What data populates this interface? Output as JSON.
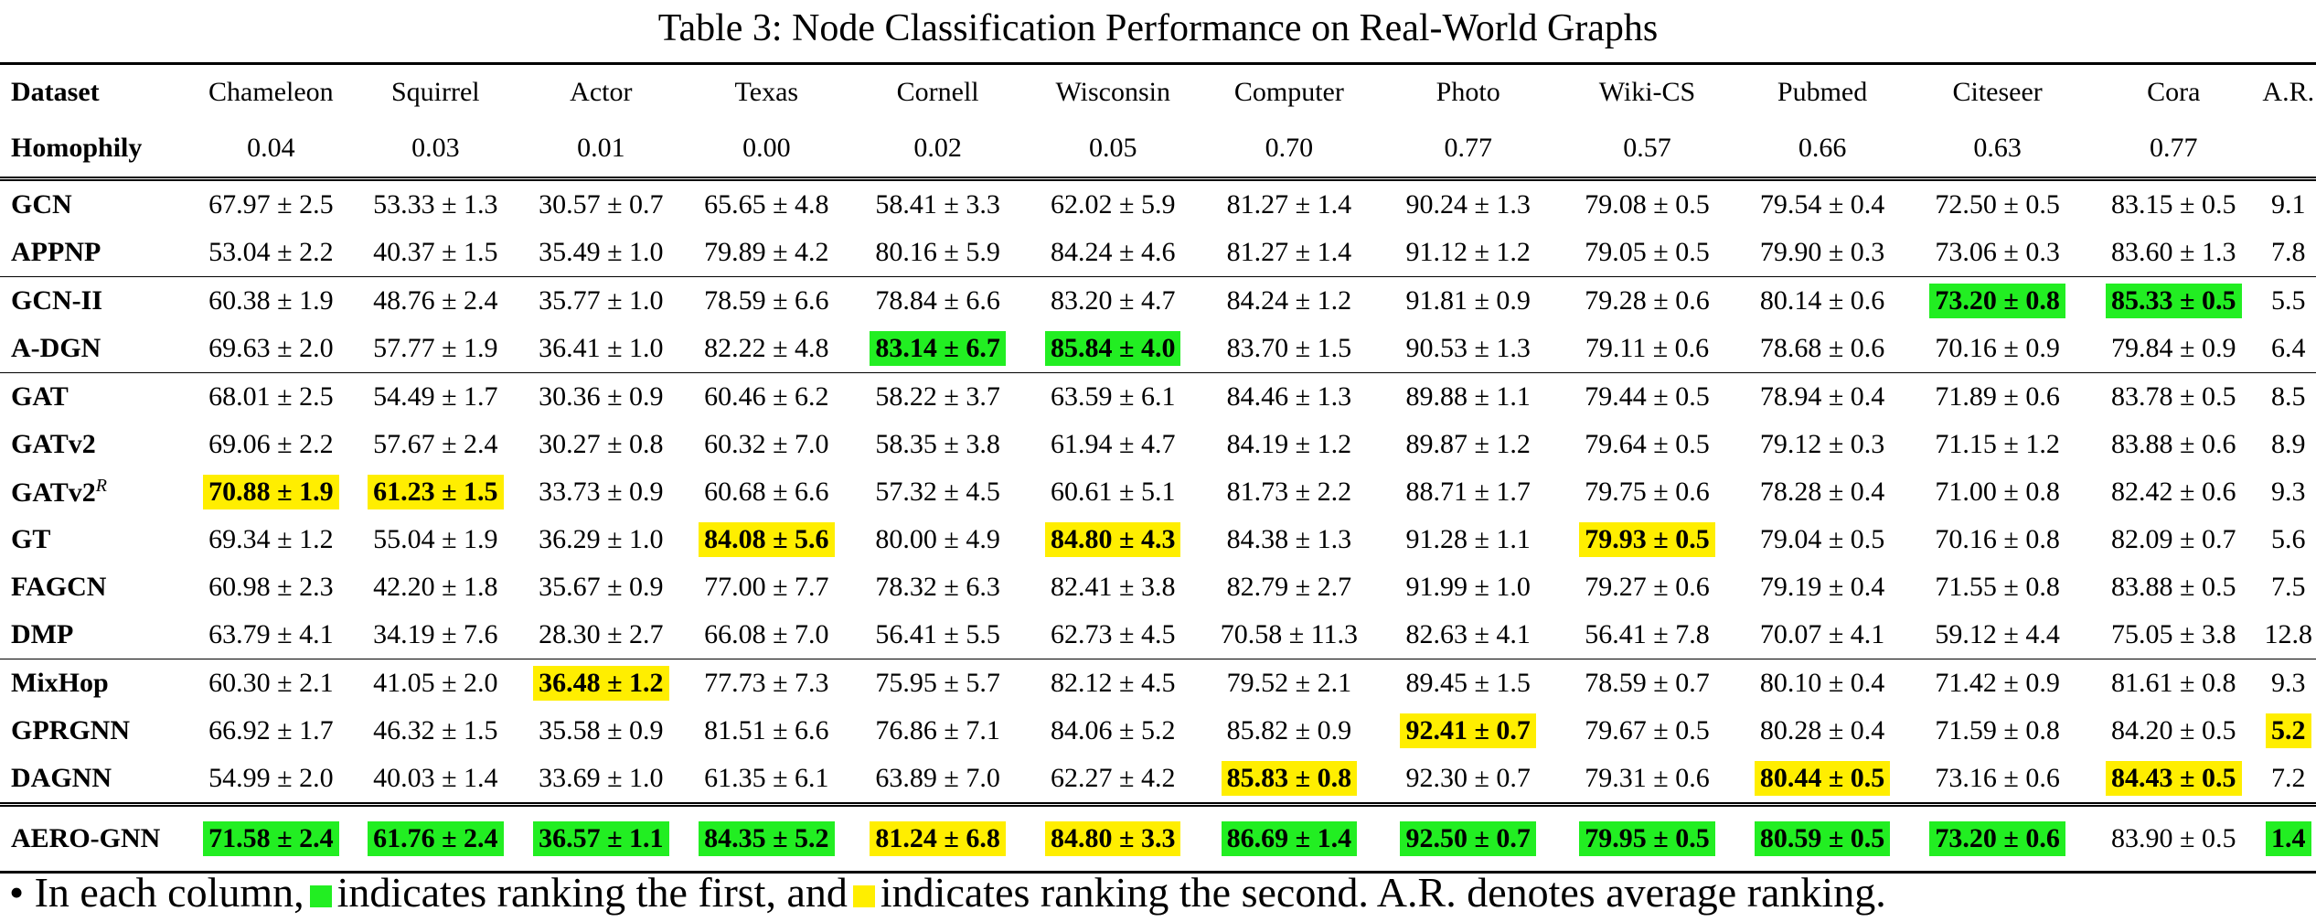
{
  "caption": "Table 3: Node Classification Performance on Real-World Graphs",
  "headers": [
    "Dataset",
    "Chameleon",
    "Squirrel",
    "Actor",
    "Texas",
    "Cornell",
    "Wisconsin",
    "Computer",
    "Photo",
    "Wiki-CS",
    "Pubmed",
    "Citeseer",
    "Cora",
    "A.R."
  ],
  "homophily": {
    "label": "Homophily",
    "values": [
      "0.04",
      "0.03",
      "0.01",
      "0.00",
      "0.02",
      "0.05",
      "0.70",
      "0.77",
      "0.57",
      "0.66",
      "0.63",
      "0.77",
      ""
    ]
  },
  "groups": [
    [
      {
        "name": "GCN",
        "cells": [
          [
            "67.97 ± 2.5",
            ""
          ],
          [
            "53.33 ± 1.3",
            ""
          ],
          [
            "30.57 ± 0.7",
            ""
          ],
          [
            "65.65 ± 4.8",
            ""
          ],
          [
            "58.41 ± 3.3",
            ""
          ],
          [
            "62.02 ± 5.9",
            ""
          ],
          [
            "81.27 ± 1.4",
            ""
          ],
          [
            "90.24 ± 1.3",
            ""
          ],
          [
            "79.08 ± 0.5",
            ""
          ],
          [
            "79.54 ± 0.4",
            ""
          ],
          [
            "72.50 ± 0.5",
            ""
          ],
          [
            "83.15 ± 0.5",
            ""
          ],
          [
            "9.1",
            ""
          ]
        ]
      },
      {
        "name": "APPNP",
        "cells": [
          [
            "53.04 ± 2.2",
            ""
          ],
          [
            "40.37 ± 1.5",
            ""
          ],
          [
            "35.49 ± 1.0",
            ""
          ],
          [
            "79.89 ± 4.2",
            ""
          ],
          [
            "80.16 ± 5.9",
            ""
          ],
          [
            "84.24 ± 4.6",
            ""
          ],
          [
            "81.27 ± 1.4",
            ""
          ],
          [
            "91.12 ± 1.2",
            ""
          ],
          [
            "79.05 ± 0.5",
            ""
          ],
          [
            "79.90 ± 0.3",
            ""
          ],
          [
            "73.06 ± 0.3",
            ""
          ],
          [
            "83.60 ± 1.3",
            ""
          ],
          [
            "7.8",
            ""
          ]
        ]
      }
    ],
    [
      {
        "name": "GCN-II",
        "cells": [
          [
            "60.38 ± 1.9",
            ""
          ],
          [
            "48.76 ± 2.4",
            ""
          ],
          [
            "35.77 ± 1.0",
            ""
          ],
          [
            "78.59 ± 6.6",
            ""
          ],
          [
            "78.84 ± 6.6",
            ""
          ],
          [
            "83.20 ± 4.7",
            ""
          ],
          [
            "84.24 ± 1.2",
            ""
          ],
          [
            "91.81 ± 0.9",
            ""
          ],
          [
            "79.28 ± 0.6",
            ""
          ],
          [
            "80.14 ± 0.6",
            ""
          ],
          [
            "73.20 ± 0.8",
            "first"
          ],
          [
            "85.33 ± 0.5",
            "first"
          ],
          [
            "5.5",
            ""
          ]
        ]
      },
      {
        "name": "A-DGN",
        "cells": [
          [
            "69.63 ± 2.0",
            ""
          ],
          [
            "57.77 ± 1.9",
            ""
          ],
          [
            "36.41 ± 1.0",
            ""
          ],
          [
            "82.22 ± 4.8",
            ""
          ],
          [
            "83.14 ± 6.7",
            "first"
          ],
          [
            "85.84 ± 4.0",
            "first"
          ],
          [
            "83.70 ± 1.5",
            ""
          ],
          [
            "90.53 ± 1.3",
            ""
          ],
          [
            "79.11 ± 0.6",
            ""
          ],
          [
            "78.68 ± 0.6",
            ""
          ],
          [
            "70.16 ± 0.9",
            ""
          ],
          [
            "79.84 ± 0.9",
            ""
          ],
          [
            "6.4",
            ""
          ]
        ]
      }
    ],
    [
      {
        "name": "GAT",
        "cells": [
          [
            "68.01 ± 2.5",
            ""
          ],
          [
            "54.49 ± 1.7",
            ""
          ],
          [
            "30.36 ± 0.9",
            ""
          ],
          [
            "60.46 ± 6.2",
            ""
          ],
          [
            "58.22 ± 3.7",
            ""
          ],
          [
            "63.59 ± 6.1",
            ""
          ],
          [
            "84.46 ± 1.3",
            ""
          ],
          [
            "89.88 ± 1.1",
            ""
          ],
          [
            "79.44 ± 0.5",
            ""
          ],
          [
            "78.94 ± 0.4",
            ""
          ],
          [
            "71.89 ± 0.6",
            ""
          ],
          [
            "83.78 ± 0.5",
            ""
          ],
          [
            "8.5",
            ""
          ]
        ]
      },
      {
        "name": "GATv2",
        "cells": [
          [
            "69.06 ± 2.2",
            ""
          ],
          [
            "57.67 ± 2.4",
            ""
          ],
          [
            "30.27 ± 0.8",
            ""
          ],
          [
            "60.32 ± 7.0",
            ""
          ],
          [
            "58.35 ± 3.8",
            ""
          ],
          [
            "61.94 ± 4.7",
            ""
          ],
          [
            "84.19 ± 1.2",
            ""
          ],
          [
            "89.87 ± 1.2",
            ""
          ],
          [
            "79.64 ± 0.5",
            ""
          ],
          [
            "79.12 ± 0.3",
            ""
          ],
          [
            "71.15 ± 1.2",
            ""
          ],
          [
            "83.88 ± 0.6",
            ""
          ],
          [
            "8.9",
            ""
          ]
        ]
      },
      {
        "name": "GATv2",
        "sup": "R",
        "cells": [
          [
            "70.88 ± 1.9",
            "second"
          ],
          [
            "61.23 ± 1.5",
            "second"
          ],
          [
            "33.73 ± 0.9",
            ""
          ],
          [
            "60.68 ± 6.6",
            ""
          ],
          [
            "57.32 ± 4.5",
            ""
          ],
          [
            "60.61 ± 5.1",
            ""
          ],
          [
            "81.73 ± 2.2",
            ""
          ],
          [
            "88.71 ± 1.7",
            ""
          ],
          [
            "79.75 ± 0.6",
            ""
          ],
          [
            "78.28 ± 0.4",
            ""
          ],
          [
            "71.00 ± 0.8",
            ""
          ],
          [
            "82.42 ± 0.6",
            ""
          ],
          [
            "9.3",
            ""
          ]
        ]
      },
      {
        "name": "GT",
        "cells": [
          [
            "69.34 ± 1.2",
            ""
          ],
          [
            "55.04 ± 1.9",
            ""
          ],
          [
            "36.29 ± 1.0",
            ""
          ],
          [
            "84.08 ± 5.6",
            "second"
          ],
          [
            "80.00 ± 4.9",
            ""
          ],
          [
            "84.80 ± 4.3",
            "second"
          ],
          [
            "84.38 ± 1.3",
            ""
          ],
          [
            "91.28 ± 1.1",
            ""
          ],
          [
            "79.93 ± 0.5",
            "second"
          ],
          [
            "79.04 ± 0.5",
            ""
          ],
          [
            "70.16 ± 0.8",
            ""
          ],
          [
            "82.09 ± 0.7",
            ""
          ],
          [
            "5.6",
            ""
          ]
        ]
      },
      {
        "name": "FAGCN",
        "cells": [
          [
            "60.98 ± 2.3",
            ""
          ],
          [
            "42.20 ± 1.8",
            ""
          ],
          [
            "35.67 ± 0.9",
            ""
          ],
          [
            "77.00 ± 7.7",
            ""
          ],
          [
            "78.32 ± 6.3",
            ""
          ],
          [
            "82.41 ± 3.8",
            ""
          ],
          [
            "82.79 ± 2.7",
            ""
          ],
          [
            "91.99 ± 1.0",
            ""
          ],
          [
            "79.27 ± 0.6",
            ""
          ],
          [
            "79.19 ± 0.4",
            ""
          ],
          [
            "71.55 ± 0.8",
            ""
          ],
          [
            "83.88 ± 0.5",
            ""
          ],
          [
            "7.5",
            ""
          ]
        ]
      },
      {
        "name": "DMP",
        "cells": [
          [
            "63.79 ± 4.1",
            ""
          ],
          [
            "34.19 ± 7.6",
            ""
          ],
          [
            "28.30 ± 2.7",
            ""
          ],
          [
            "66.08 ± 7.0",
            ""
          ],
          [
            "56.41 ± 5.5",
            ""
          ],
          [
            "62.73 ± 4.5",
            ""
          ],
          [
            "70.58 ± 11.3",
            ""
          ],
          [
            "82.63 ± 4.1",
            ""
          ],
          [
            "56.41 ± 7.8",
            ""
          ],
          [
            "70.07 ± 4.1",
            ""
          ],
          [
            "59.12 ± 4.4",
            ""
          ],
          [
            "75.05 ± 3.8",
            ""
          ],
          [
            "12.8",
            ""
          ]
        ]
      }
    ],
    [
      {
        "name": "MixHop",
        "cells": [
          [
            "60.30 ± 2.1",
            ""
          ],
          [
            "41.05 ± 2.0",
            ""
          ],
          [
            "36.48 ± 1.2",
            "second"
          ],
          [
            "77.73 ± 7.3",
            ""
          ],
          [
            "75.95 ± 5.7",
            ""
          ],
          [
            "82.12 ± 4.5",
            ""
          ],
          [
            "79.52 ± 2.1",
            ""
          ],
          [
            "89.45 ± 1.5",
            ""
          ],
          [
            "78.59 ± 0.7",
            ""
          ],
          [
            "80.10 ± 0.4",
            ""
          ],
          [
            "71.42 ± 0.9",
            ""
          ],
          [
            "81.61 ± 0.8",
            ""
          ],
          [
            "9.3",
            ""
          ]
        ]
      },
      {
        "name": "GPRGNN",
        "cells": [
          [
            "66.92 ± 1.7",
            ""
          ],
          [
            "46.32 ± 1.5",
            ""
          ],
          [
            "35.58 ± 0.9",
            ""
          ],
          [
            "81.51 ± 6.6",
            ""
          ],
          [
            "76.86 ± 7.1",
            ""
          ],
          [
            "84.06 ± 5.2",
            ""
          ],
          [
            "85.82 ± 0.9",
            ""
          ],
          [
            "92.41 ± 0.7",
            "second"
          ],
          [
            "79.67 ± 0.5",
            ""
          ],
          [
            "80.28 ± 0.4",
            ""
          ],
          [
            "71.59 ± 0.8",
            ""
          ],
          [
            "84.20 ± 0.5",
            ""
          ],
          [
            "5.2",
            "second"
          ]
        ]
      },
      {
        "name": "DAGNN",
        "cells": [
          [
            "54.99 ± 2.0",
            ""
          ],
          [
            "40.03 ± 1.4",
            ""
          ],
          [
            "33.69 ± 1.0",
            ""
          ],
          [
            "61.35 ± 6.1",
            ""
          ],
          [
            "63.89 ± 7.0",
            ""
          ],
          [
            "62.27 ± 4.2",
            ""
          ],
          [
            "85.83 ± 0.8",
            "second"
          ],
          [
            "92.30 ± 0.7",
            ""
          ],
          [
            "79.31 ± 0.6",
            ""
          ],
          [
            "80.44 ± 0.5",
            "second"
          ],
          [
            "73.16 ± 0.6",
            ""
          ],
          [
            "84.43 ± 0.5",
            "second"
          ],
          [
            "7.2",
            ""
          ]
        ]
      }
    ]
  ],
  "aero": {
    "name": "AERO-GNN",
    "cells": [
      [
        "71.58 ± 2.4",
        "first"
      ],
      [
        "61.76 ± 2.4",
        "first"
      ],
      [
        "36.57 ± 1.1",
        "first"
      ],
      [
        "84.35 ± 5.2",
        "first"
      ],
      [
        "81.24 ± 6.8",
        "second"
      ],
      [
        "84.80 ± 3.3",
        "second"
      ],
      [
        "86.69 ± 1.4",
        "first"
      ],
      [
        "92.50 ± 0.7",
        "first"
      ],
      [
        "79.95 ± 0.5",
        "first"
      ],
      [
        "80.59 ± 0.5",
        "first"
      ],
      [
        "73.20 ± 0.6",
        "first"
      ],
      [
        "83.90 ± 0.5",
        ""
      ],
      [
        "1.4",
        "first"
      ]
    ]
  },
  "note": {
    "bullet": "•",
    "part1": "In each column,",
    "part2": "indicates ranking the first, and",
    "part3": "indicates ranking the second. A.R. denotes average ranking."
  },
  "colors": {
    "first": "#22ee22",
    "second": "#ffee00"
  }
}
